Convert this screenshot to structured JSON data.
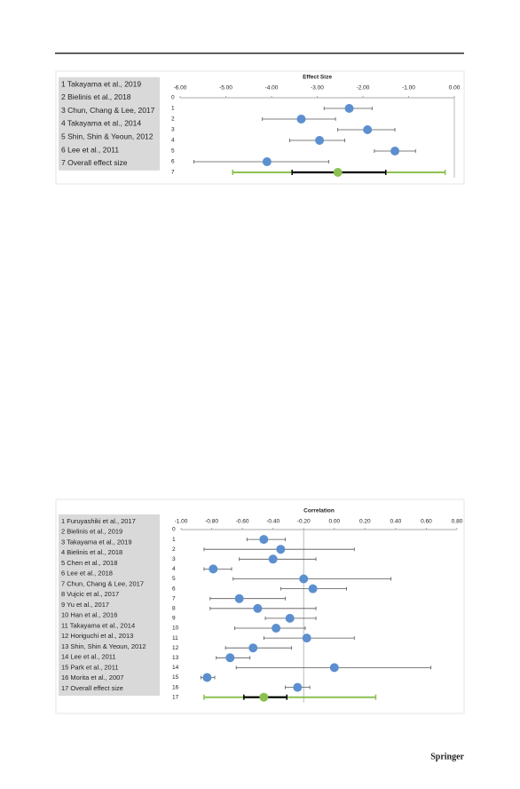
{
  "chart_data": [
    {
      "type": "forest",
      "title": "Effect Size",
      "study_labels": [
        "1 Takayama et al., 2019",
        "2 Bielinis et al., 2018",
        "3 Chun, Chang & Lee, 2017",
        "4 Takayama et al., 2014",
        "5 Shin, Shin & Yeoun, 2012",
        "6 Lee et al., 2011",
        "7 Overall effect size"
      ],
      "row_labels": [
        0,
        1,
        2,
        3,
        4,
        5,
        6,
        7
      ],
      "values": [
        -2.3,
        -3.35,
        -1.9,
        -2.95,
        -1.3,
        -4.1
      ],
      "lower": [
        -2.85,
        -4.2,
        -2.55,
        -3.6,
        -1.75,
        -5.7
      ],
      "upper": [
        -1.8,
        -2.6,
        -1.3,
        -2.4,
        -0.85,
        -2.75
      ],
      "pooled": {
        "value": -2.55,
        "lower": -3.55,
        "upper": -1.5,
        "pi_lower": -4.85,
        "pi_upper": -0.2
      },
      "reference_line": 0,
      "xlim": [
        -6,
        0
      ],
      "xticks": [
        {
          "value": -6,
          "label": "-6.00"
        },
        {
          "value": -5,
          "label": "-5.00"
        },
        {
          "value": -4,
          "label": "-4.00"
        },
        {
          "value": -3,
          "label": "-3.00"
        },
        {
          "value": -2,
          "label": "-2.00"
        },
        {
          "value": -1,
          "label": "-1.00"
        },
        {
          "value": 0,
          "label": "0.00"
        }
      ],
      "color": "#5b8fd0",
      "pooled_color": "#8cc152"
    },
    {
      "type": "forest",
      "title": "Correlation",
      "study_labels": [
        "1 Furuyashiki et al., 2017",
        "2 Bielinis et al., 2019",
        "3 Takayama et al., 2019",
        "4 Bielinis et al., 2018",
        "5 Chen et al., 2018",
        "6 Lee et al., 2018",
        "7 Chun, Chang & Lee, 2017",
        "8 Vujcic et al., 2017",
        "9 Yu et al., 2017",
        "10 Han et al., 2016",
        "11 Takayama et al., 2014",
        "12 Horiguchi et al., 2013",
        "13 Shin, Shin & Yeoun, 2012",
        "14 Lee et al., 2011",
        "15 Park et al., 2011",
        "16 Morita et al., 2007",
        "17 Overall effect size"
      ],
      "row_labels": [
        0,
        1,
        2,
        3,
        4,
        5,
        6,
        7,
        8,
        9,
        10,
        11,
        12,
        13,
        14,
        15,
        16,
        17
      ],
      "values": [
        -0.46,
        -0.35,
        -0.4,
        -0.79,
        -0.2,
        -0.14,
        -0.62,
        -0.5,
        -0.29,
        -0.38,
        -0.18,
        -0.53,
        -0.68,
        0,
        -0.83,
        -0.24
      ],
      "lower": [
        -0.57,
        -0.85,
        -0.62,
        -0.85,
        -0.66,
        -0.35,
        -0.81,
        -0.81,
        -0.45,
        -0.65,
        -0.46,
        -0.71,
        -0.77,
        -0.64,
        -0.87,
        -0.32
      ],
      "upper": [
        -0.32,
        0.13,
        -0.12,
        -0.67,
        0.37,
        0.08,
        -0.32,
        -0.12,
        -0.12,
        -0.19,
        0.13,
        -0.28,
        -0.55,
        0.63,
        -0.78,
        -0.16
      ],
      "pooled": {
        "value": -0.46,
        "lower": -0.59,
        "upper": -0.31,
        "pi_lower": -0.85,
        "pi_upper": 0.27
      },
      "reference_line": -0.2,
      "xlim": [
        -1,
        0.8
      ],
      "xticks": [
        {
          "value": -1,
          "label": "-1.00"
        },
        {
          "value": -0.8,
          "label": "-0.80"
        },
        {
          "value": -0.6,
          "label": "-0.60"
        },
        {
          "value": -0.4,
          "label": "-0.40"
        },
        {
          "value": -0.2,
          "label": "-0.20"
        },
        {
          "value": 0,
          "label": "0.00"
        },
        {
          "value": 0.2,
          "label": "0.20"
        },
        {
          "value": 0.4,
          "label": "0.40"
        },
        {
          "value": 0.6,
          "label": "0.60"
        },
        {
          "value": 0.8,
          "label": "0.80"
        }
      ],
      "color": "#5b8fd0",
      "pooled_color": "#8cc152"
    }
  ],
  "publisher": "Springer"
}
